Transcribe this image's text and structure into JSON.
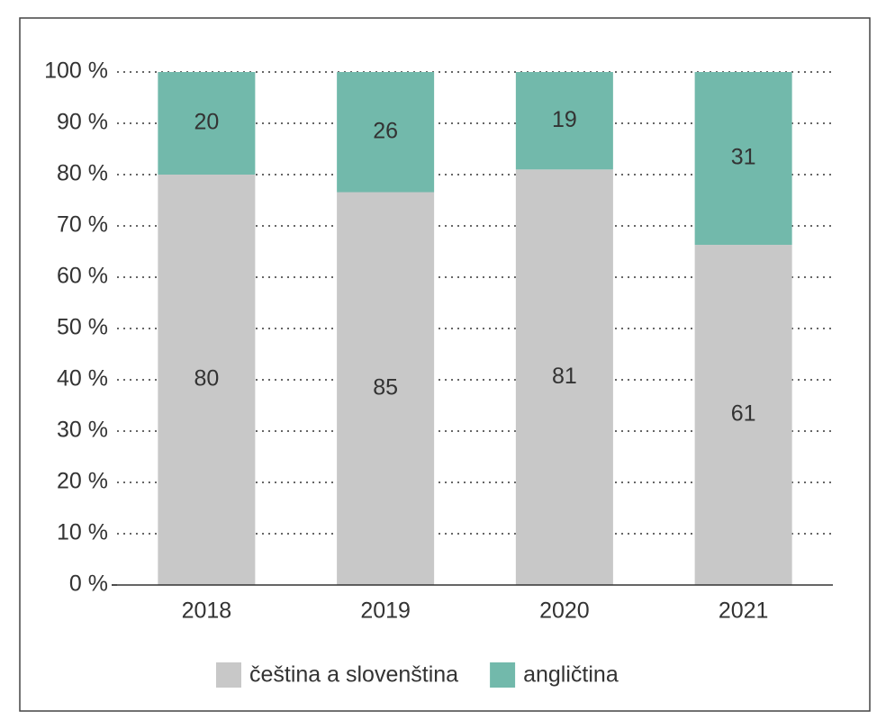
{
  "chart_data": {
    "type": "bar",
    "stacked": "percent",
    "categories": [
      "2018",
      "2019",
      "2020",
      "2021"
    ],
    "series": [
      {
        "name": "čeština a slovenština",
        "color": "#c8c8c8",
        "values": [
          80,
          85,
          81,
          61
        ]
      },
      {
        "name": "angličtina",
        "color": "#72b9ab",
        "values": [
          20,
          26,
          19,
          31
        ]
      }
    ],
    "ylim": [
      0,
      100
    ],
    "yticks": [
      {
        "value": 0,
        "label": "0 %"
      },
      {
        "value": 10,
        "label": "10 %"
      },
      {
        "value": 20,
        "label": "20 %"
      },
      {
        "value": 30,
        "label": "30 %"
      },
      {
        "value": 40,
        "label": "40 %"
      },
      {
        "value": 50,
        "label": "50 %"
      },
      {
        "value": 60,
        "label": "60 %"
      },
      {
        "value": 70,
        "label": "70 %"
      },
      {
        "value": 80,
        "label": "80 %"
      },
      {
        "value": 90,
        "label": "90 %"
      },
      {
        "value": 100,
        "label": "100 %"
      }
    ],
    "grid": true,
    "legend": "bottom"
  }
}
